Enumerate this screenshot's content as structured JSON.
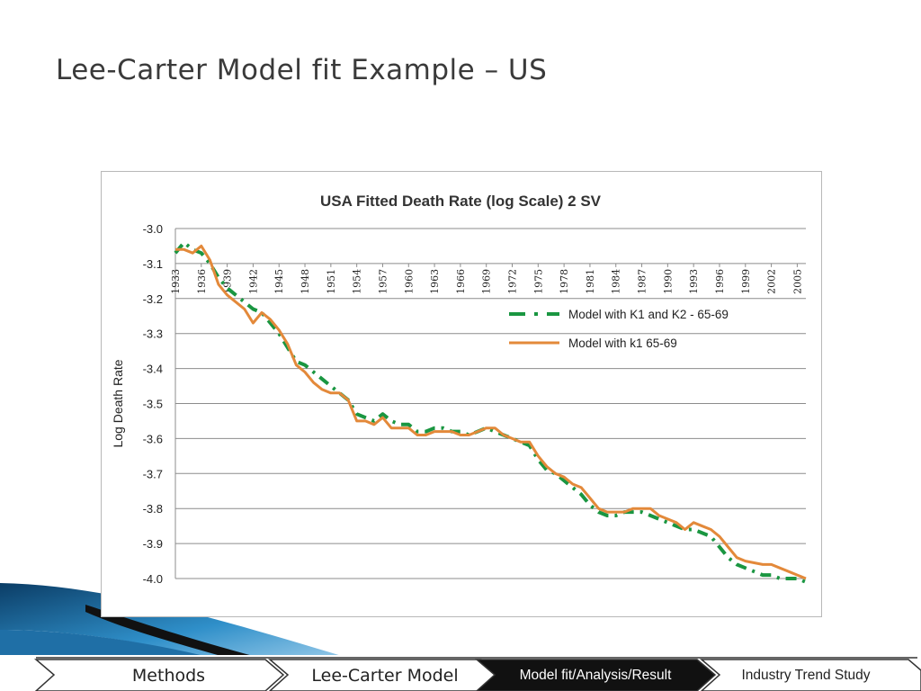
{
  "slide": {
    "title": "Lee-Carter Model fit Example – US"
  },
  "chart_data": {
    "type": "line",
    "title": "USA Fitted Death Rate (log Scale)  2 SV",
    "xlabel": "",
    "ylabel": "Log Death Rate",
    "ylim": [
      -4.0,
      -3.0
    ],
    "yticks": [
      "-3.0",
      "-3.1",
      "-3.2",
      "-3.3",
      "-3.4",
      "-3.5",
      "-3.6",
      "-3.7",
      "-3.8",
      "-3.9",
      "-4.0"
    ],
    "xticks": [
      "1933",
      "1936",
      "1939",
      "1942",
      "1945",
      "1948",
      "1951",
      "1954",
      "1957",
      "1960",
      "1963",
      "1966",
      "1969",
      "1972",
      "1975",
      "1978",
      "1981",
      "1984",
      "1987",
      "1990",
      "1993",
      "1996",
      "1999",
      "2002",
      "2005"
    ],
    "grid": true,
    "legend_position": "right",
    "x": [
      1933,
      1934,
      1935,
      1936,
      1937,
      1938,
      1939,
      1940,
      1941,
      1942,
      1943,
      1944,
      1945,
      1946,
      1947,
      1948,
      1949,
      1950,
      1951,
      1952,
      1953,
      1954,
      1955,
      1956,
      1957,
      1958,
      1959,
      1960,
      1961,
      1962,
      1963,
      1964,
      1965,
      1966,
      1967,
      1968,
      1969,
      1970,
      1971,
      1972,
      1973,
      1974,
      1975,
      1976,
      1977,
      1978,
      1979,
      1980,
      1981,
      1982,
      1983,
      1984,
      1985,
      1986,
      1987,
      1988,
      1989,
      1990,
      1991,
      1992,
      1993,
      1994,
      1995,
      1996,
      1997,
      1998,
      1999,
      2000,
      2001,
      2002,
      2003,
      2004,
      2005,
      2006
    ],
    "series": [
      {
        "name": "Model with K1 and K2 - 65-69",
        "color": "#1a9641",
        "style": "dash-dot",
        "values": [
          -3.07,
          -3.04,
          -3.06,
          -3.07,
          -3.1,
          -3.14,
          -3.17,
          -3.19,
          -3.21,
          -3.23,
          -3.24,
          -3.27,
          -3.3,
          -3.34,
          -3.38,
          -3.39,
          -3.41,
          -3.43,
          -3.45,
          -3.47,
          -3.49,
          -3.53,
          -3.54,
          -3.55,
          -3.53,
          -3.55,
          -3.56,
          -3.56,
          -3.58,
          -3.58,
          -3.57,
          -3.57,
          -3.58,
          -3.58,
          -3.59,
          -3.58,
          -3.57,
          -3.58,
          -3.59,
          -3.6,
          -3.61,
          -3.62,
          -3.66,
          -3.69,
          -3.7,
          -3.72,
          -3.74,
          -3.76,
          -3.79,
          -3.81,
          -3.82,
          -3.82,
          -3.81,
          -3.81,
          -3.81,
          -3.82,
          -3.83,
          -3.84,
          -3.85,
          -3.86,
          -3.86,
          -3.87,
          -3.88,
          -3.91,
          -3.94,
          -3.96,
          -3.97,
          -3.98,
          -3.99,
          -3.99,
          -4.0,
          -4.0,
          -4.0,
          -4.01
        ]
      },
      {
        "name": "Model with k1 65-69",
        "color": "#e3893a",
        "style": "solid",
        "values": [
          -3.06,
          -3.06,
          -3.07,
          -3.05,
          -3.09,
          -3.16,
          -3.19,
          -3.21,
          -3.23,
          -3.27,
          -3.24,
          -3.26,
          -3.29,
          -3.33,
          -3.39,
          -3.41,
          -3.44,
          -3.46,
          -3.47,
          -3.47,
          -3.49,
          -3.55,
          -3.55,
          -3.56,
          -3.54,
          -3.57,
          -3.57,
          -3.57,
          -3.59,
          -3.59,
          -3.58,
          -3.58,
          -3.58,
          -3.59,
          -3.59,
          -3.58,
          -3.57,
          -3.57,
          -3.59,
          -3.6,
          -3.61,
          -3.61,
          -3.65,
          -3.68,
          -3.7,
          -3.71,
          -3.73,
          -3.74,
          -3.77,
          -3.8,
          -3.81,
          -3.81,
          -3.81,
          -3.8,
          -3.8,
          -3.8,
          -3.82,
          -3.83,
          -3.84,
          -3.86,
          -3.84,
          -3.85,
          -3.86,
          -3.88,
          -3.91,
          -3.94,
          -3.95,
          -3.955,
          -3.96,
          -3.96,
          -3.97,
          -3.98,
          -3.99,
          -4.0
        ]
      }
    ]
  },
  "nav": {
    "items": [
      {
        "label": "Methods"
      },
      {
        "label": "Lee-Carter Model"
      },
      {
        "label": "Model fit/Analysis/Result",
        "active": true
      },
      {
        "label": "Industry Trend Study"
      }
    ],
    "colors": {
      "active": "#111111",
      "inactive": "#ffffff",
      "border": "#333333"
    }
  },
  "decor": {
    "accent_colors": [
      "#0b3d66",
      "#2f8fc9",
      "#a7d3ee"
    ]
  }
}
